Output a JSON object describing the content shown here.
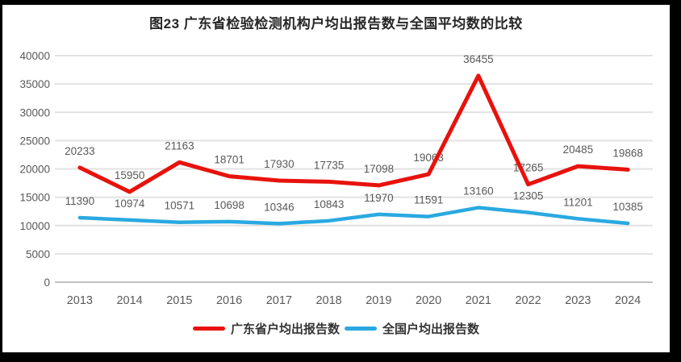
{
  "title": "图23  广东省检验检测机构户均出报告数与全国平均数的比较",
  "chart_data": {
    "type": "line",
    "title": "图23  广东省检验检测机构户均出报告数与全国平均数的比较",
    "categories": [
      "2013",
      "2014",
      "2015",
      "2016",
      "2017",
      "2018",
      "2019",
      "2020",
      "2021",
      "2022",
      "2023",
      "2024"
    ],
    "series": [
      {
        "name": "广东省户均出报告数",
        "color": "#e8120c",
        "stroke_width": 5,
        "values": [
          20233,
          15950,
          21163,
          18701,
          17930,
          17735,
          17098,
          19063,
          36455,
          17265,
          20485,
          19868
        ]
      },
      {
        "name": "全国户均出报告数",
        "color": "#2aa9e0",
        "stroke_width": 4.5,
        "values": [
          11390,
          10974,
          10571,
          10698,
          10346,
          10843,
          11970,
          11591,
          13160,
          12305,
          11201,
          10385
        ]
      }
    ],
    "ylim": [
      0,
      40000
    ],
    "yticks": [
      0,
      5000,
      10000,
      15000,
      20000,
      25000,
      30000,
      35000,
      40000
    ],
    "xlabel": "",
    "ylabel": "",
    "grid": true,
    "data_labels": true,
    "legend_position": "bottom",
    "colors": {
      "gridline": "#e2e2e2",
      "axis_line": "#c3c3c3",
      "axis_text": "#595959",
      "data_label_text": "#595959",
      "background": "#ffffff"
    }
  }
}
